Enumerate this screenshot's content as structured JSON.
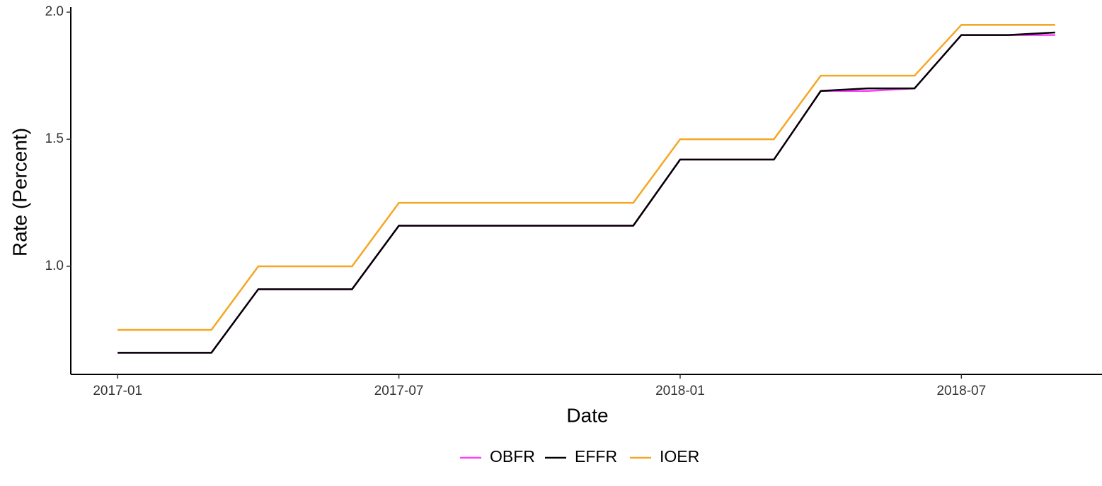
{
  "chart_data": {
    "type": "line",
    "x_label": "Date",
    "y_label": "Rate (Percent)",
    "x": [
      "2017-01",
      "2017-02",
      "2017-03",
      "2017-04",
      "2017-05",
      "2017-06",
      "2017-07",
      "2017-08",
      "2017-09",
      "2017-10",
      "2017-11",
      "2017-12",
      "2018-01",
      "2018-02",
      "2018-03",
      "2018-04",
      "2018-05",
      "2018-06",
      "2018-07",
      "2018-08",
      "2018-09"
    ],
    "series": [
      {
        "name": "OBFR",
        "color": "#ff3cff",
        "values": [
          0.66,
          0.66,
          0.66,
          0.91,
          0.91,
          0.91,
          1.16,
          1.16,
          1.16,
          1.16,
          1.16,
          1.16,
          1.42,
          1.42,
          1.42,
          1.69,
          1.69,
          1.7,
          1.91,
          1.91,
          1.91
        ]
      },
      {
        "name": "EFFR",
        "color": "#000000",
        "values": [
          0.66,
          0.66,
          0.66,
          0.91,
          0.91,
          0.91,
          1.16,
          1.16,
          1.16,
          1.16,
          1.16,
          1.16,
          1.42,
          1.42,
          1.42,
          1.69,
          1.7,
          1.7,
          1.91,
          1.91,
          1.92
        ]
      },
      {
        "name": "IOER",
        "color": "#f5a623",
        "values": [
          0.75,
          0.75,
          0.75,
          1.0,
          1.0,
          1.0,
          1.25,
          1.25,
          1.25,
          1.25,
          1.25,
          1.25,
          1.5,
          1.5,
          1.5,
          1.75,
          1.75,
          1.75,
          1.95,
          1.95,
          1.95
        ]
      }
    ],
    "xlim": [
      "2016-12",
      "2018-10"
    ],
    "xticks": [
      "2017-01",
      "2017-07",
      "2018-01",
      "2018-07"
    ],
    "ylim": [
      0.575,
      2.02
    ],
    "yticks": [
      {
        "value": 1,
        "label": "1.0"
      },
      {
        "value": 1.5,
        "label": "1.5"
      },
      {
        "value": 2,
        "label": "2.0"
      }
    ],
    "grid": false,
    "legend": "bottom"
  }
}
